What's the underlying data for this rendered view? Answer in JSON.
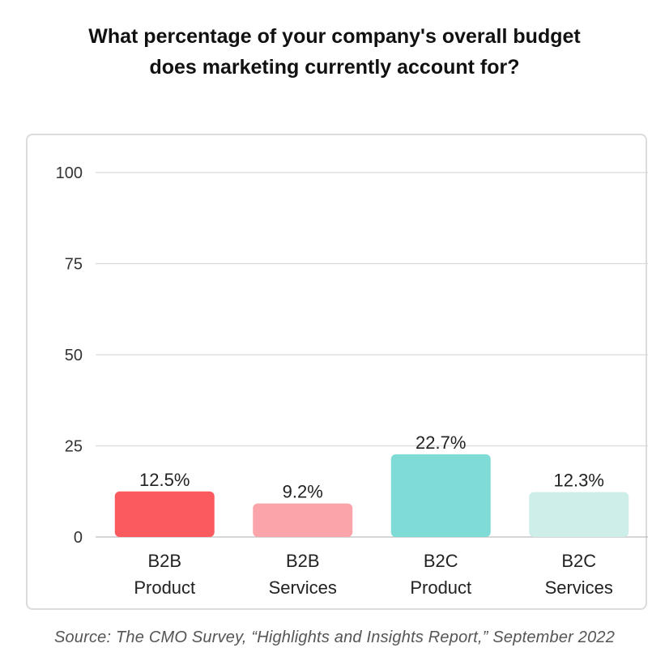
{
  "chart_data": {
    "type": "bar",
    "title_lines": [
      "What percentage of your company's overall budget",
      "does marketing currently account for?"
    ],
    "categories": [
      [
        "B2B",
        "Product"
      ],
      [
        "B2B",
        "Services"
      ],
      [
        "B2C",
        "Product"
      ],
      [
        "B2C",
        "Services"
      ]
    ],
    "values": [
      12.5,
      9.2,
      22.7,
      12.3
    ],
    "value_labels": [
      "12.5%",
      "9.2%",
      "22.7%",
      "12.3%"
    ],
    "colors": [
      "#fb5a5e",
      "#fba5aa",
      "#7fdbd6",
      "#cdeee9"
    ],
    "ylim": [
      0,
      100
    ],
    "yticks": [
      0,
      25,
      50,
      75,
      100
    ],
    "grid": true
  },
  "source": "Source: The CMO Survey, “Highlights and Insights Report,” September 2022"
}
